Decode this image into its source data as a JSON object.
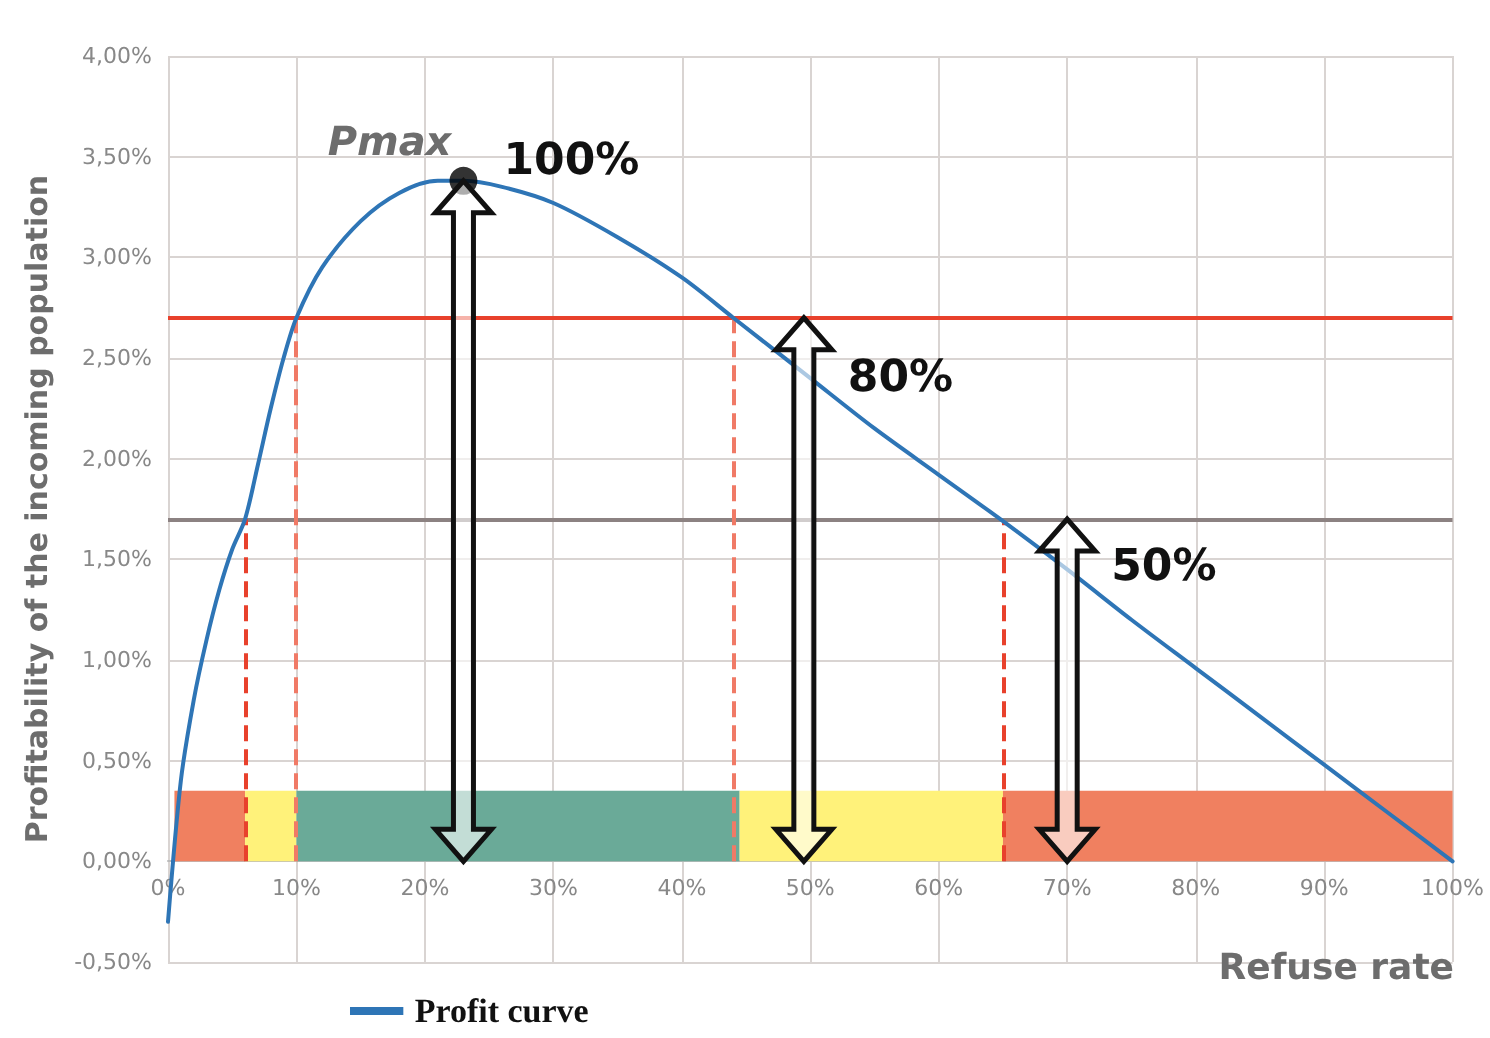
{
  "chart_data": {
    "type": "line",
    "xlabel": "Refuse rate",
    "ylabel": "Profitability of the incoming population",
    "series": [
      {
        "name": "Profit curve",
        "color": "#2e75b6",
        "x": [
          0,
          1,
          2,
          3,
          4,
          5,
          6,
          7,
          8,
          9,
          10,
          12,
          15,
          18,
          21,
          23,
          26,
          30,
          35,
          40,
          44,
          50,
          55,
          60,
          65,
          70,
          75,
          80,
          85,
          90,
          95,
          100
        ],
        "values": [
          -0.3,
          0.4,
          0.8,
          1.1,
          1.35,
          1.55,
          1.7,
          1.97,
          2.25,
          2.5,
          2.7,
          2.95,
          3.18,
          3.32,
          3.38,
          3.38,
          3.35,
          3.27,
          3.1,
          2.9,
          2.7,
          2.4,
          2.15,
          1.92,
          1.69,
          1.45,
          1.2,
          0.96,
          0.72,
          0.48,
          0.24,
          0
        ]
      },
      {
        "type": "scatter",
        "color": "#000000",
        "marker": "circle",
        "x": [
          23
        ],
        "values": [
          3.38
        ]
      }
    ],
    "xlim": [
      0,
      100
    ],
    "xticks": [
      {
        "value": 0,
        "label": "0%"
      },
      {
        "value": 10,
        "label": "10%"
      },
      {
        "value": 20,
        "label": "20%"
      },
      {
        "value": 30,
        "label": "30%"
      },
      {
        "value": 40,
        "label": "40%"
      },
      {
        "value": 50,
        "label": "50%"
      },
      {
        "value": 60,
        "label": "60%"
      },
      {
        "value": 70,
        "label": "70%"
      },
      {
        "value": 80,
        "label": "80%"
      },
      {
        "value": 90,
        "label": "90%"
      },
      {
        "value": 100,
        "label": "100%"
      }
    ],
    "ylim": [
      -0.5,
      4
    ],
    "yticks": [
      {
        "value": -0.5,
        "label": "-0,50%"
      },
      {
        "value": 0,
        "label": "0,00%"
      },
      {
        "value": 0.5,
        "label": "0,50%"
      },
      {
        "value": 1,
        "label": "1,00%"
      },
      {
        "value": 1.5,
        "label": "1,50%"
      },
      {
        "value": 2,
        "label": "2,00%"
      },
      {
        "value": 2.5,
        "label": "2,50%"
      },
      {
        "value": 3,
        "label": "3,00%"
      },
      {
        "value": 3.5,
        "label": "3,50%"
      },
      {
        "value": 4,
        "label": "4,00%"
      }
    ],
    "ref_lines": [
      {
        "axis": "y",
        "value": 2.7,
        "color": "#e8412c",
        "line_style": "solid"
      },
      {
        "axis": "y",
        "value": 1.7,
        "color": "#8c8282",
        "line_style": "solid"
      },
      {
        "axis": "x",
        "value": 6,
        "color": "#e8412c",
        "line_style": "dashed"
      },
      {
        "axis": "x",
        "value": 10,
        "color": "#f07a66",
        "line_style": "dashed"
      },
      {
        "axis": "x",
        "value": 44,
        "color": "#f07a66",
        "line_style": "dashed"
      },
      {
        "axis": "x",
        "value": 65,
        "color": "#e8412c",
        "line_style": "dashed"
      }
    ],
    "bands": [
      {
        "axis": "x",
        "from": 0.5,
        "to": 6,
        "color": "#f08060"
      },
      {
        "axis": "x",
        "from": 6,
        "to": 10,
        "color": "#fff27a"
      },
      {
        "axis": "x",
        "from": 10,
        "to": 44.5,
        "color": "#6aaa98"
      },
      {
        "axis": "x",
        "from": 44.5,
        "to": 65,
        "color": "#fff27a"
      },
      {
        "axis": "x",
        "from": 65,
        "to": 100,
        "color": "#f08060"
      }
    ],
    "annotations": [
      {
        "text": "Pmax",
        "x": 23,
        "y": 3.38
      },
      {
        "text": "100%",
        "x": 23,
        "y": 3.38
      },
      {
        "text": "80%",
        "x": 49.5,
        "y": 2.7
      },
      {
        "text": "50%",
        "x": 70,
        "y": 1.7
      }
    ],
    "grid": true,
    "legend": "bottom left",
    "line_style": "solid"
  }
}
